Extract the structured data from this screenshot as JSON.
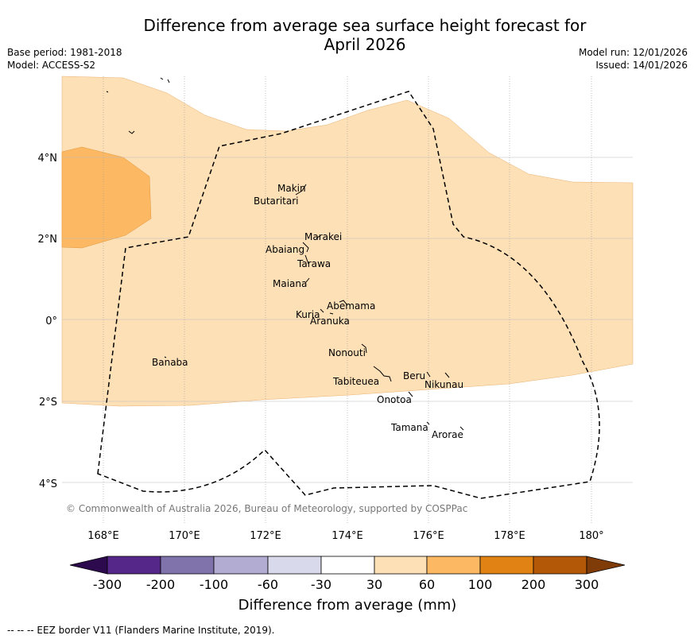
{
  "header": {
    "title_line1": "Difference from average sea surface height forecast for",
    "title_line2": "April 2026",
    "base_period": "Base period: 1981-2018",
    "model": "Model: ACCESS-S2",
    "model_run": "Model run: 12/01/2026",
    "issued": "Issued: 14/01/2026"
  },
  "map": {
    "lat_labels": [
      "4°N",
      "2°N",
      "0°",
      "2°S",
      "4°S"
    ],
    "lon_labels": [
      "168°E",
      "170°E",
      "172°E",
      "174°E",
      "176°E",
      "178°E",
      "180°"
    ],
    "places": {
      "makin": "Makin",
      "butaritari": "Butaritari",
      "marakei": "Marakei",
      "abaiang": "Abaiang",
      "tarawa": "Tarawa",
      "maiana": "Maiana",
      "abemama": "Abemama",
      "kuria": "Kuria",
      "aranuka": "Aranuka",
      "nonouti": "Nonouti",
      "banaba": "Banaba",
      "tabiteuea": "Tabiteuea",
      "beru": "Beru",
      "nikunau": "Nikunau",
      "onotoa": "Onotoa",
      "tamana": "Tamana",
      "arorae": "Arorae"
    },
    "copyright": "© Commonwealth of Australia 2026, Bureau of Meteorology, supported by COSPPac"
  },
  "colorbar": {
    "ticks": [
      "-300",
      "-200",
      "-100",
      "-60",
      "-30",
      "30",
      "60",
      "100",
      "200",
      "300"
    ],
    "label": "Difference from average (mm)",
    "colors": [
      "#2d0a4e",
      "#542788",
      "#8073ac",
      "#b2abd2",
      "#d8daeb",
      "#ffffff",
      "#fee0b6",
      "#fdb863",
      "#e08214",
      "#b35806",
      "#7f3b08"
    ]
  },
  "footnote": "-- -- -- EEZ border V11 (Flanders Marine Institute, 2019)."
}
